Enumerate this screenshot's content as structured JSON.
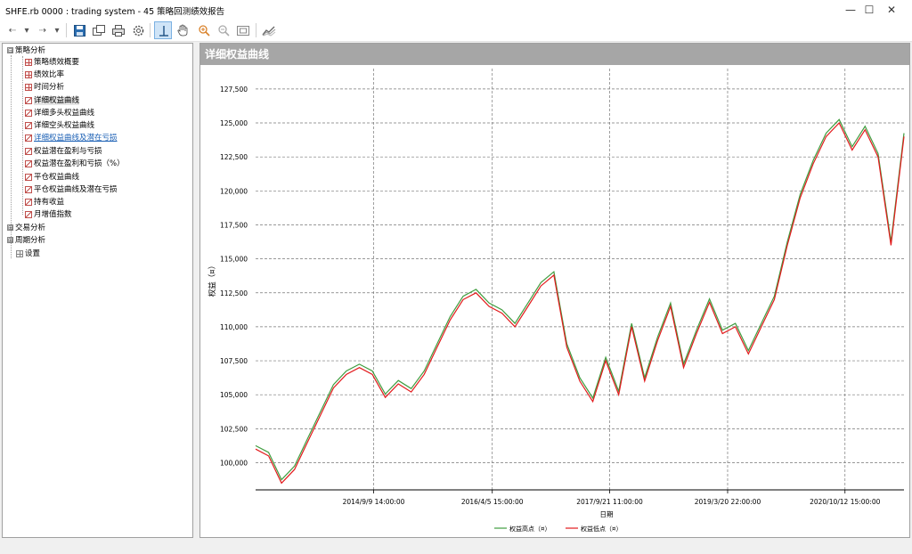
{
  "window": {
    "title": "SHFE.rb 0000 : trading system - 45 策略回测绩效报告",
    "minimize": "—",
    "maximize": "☐",
    "close": "✕"
  },
  "toolbar": {
    "back": "⇠",
    "forward": "⇢",
    "dropdown": "▾"
  },
  "tree": {
    "groups": [
      {
        "label": "策略分析",
        "expander": "⊟"
      },
      {
        "label": "交易分析",
        "expander": "⊞"
      },
      {
        "label": "周期分析",
        "expander": "⊞"
      },
      {
        "label": "设置"
      }
    ],
    "items": [
      {
        "label": "策略绩效概要"
      },
      {
        "label": "绩效比率"
      },
      {
        "label": "时间分析"
      },
      {
        "label": "详细权益曲线"
      },
      {
        "label": "详细多头权益曲线"
      },
      {
        "label": "详细空头权益曲线"
      },
      {
        "label": "详细权益曲线及潜在亏损"
      },
      {
        "label": "权益潜在盈利与亏损"
      },
      {
        "label": "权益潜在盈利和亏损（%）"
      },
      {
        "label": "平仓权益曲线"
      },
      {
        "label": "平仓权益曲线及潜在亏损"
      },
      {
        "label": "持有收益"
      },
      {
        "label": "月增值指数"
      }
    ]
  },
  "panel": {
    "header": "详细权益曲线"
  },
  "chart_data": {
    "type": "line",
    "title": "",
    "xlabel": "日期",
    "ylabel": "权益（¤）",
    "ylim": [
      98000,
      129000
    ],
    "y_ticks": [
      "100,000",
      "102,500",
      "105,000",
      "107,500",
      "110,000",
      "112,500",
      "115,000",
      "117,500",
      "120,000",
      "122,500",
      "125,000",
      "127,500"
    ],
    "x_ticks": [
      "2014/9/9 14:00:00",
      "2016/4/5 15:00:00",
      "2017/9/21 11:00:00",
      "2019/3/20 22:00:00",
      "2020/10/12 15:00:00"
    ],
    "grid": true,
    "legend_position": "bottom-center",
    "colors": {
      "high": "#3f9d3f",
      "low": "#e31a1c"
    },
    "series": [
      {
        "name": "权益高点（¤）",
        "color": "#3f9d3f"
      },
      {
        "name": "权益低点（¤）",
        "color": "#e31a1c"
      }
    ],
    "x_index": [
      0,
      2,
      4,
      6,
      8,
      10,
      12,
      14,
      16,
      18,
      20,
      22,
      24,
      26,
      28,
      30,
      32,
      34,
      36,
      38,
      40,
      42,
      44,
      46,
      48,
      50,
      52,
      54,
      56,
      58,
      60,
      62,
      64,
      66,
      68,
      70,
      72,
      74,
      76,
      78,
      80,
      82,
      84,
      86,
      88,
      90,
      92,
      94,
      96,
      98,
      100
    ],
    "equity": [
      101000,
      100500,
      98500,
      99500,
      101500,
      103500,
      105500,
      106500,
      107000,
      106500,
      104800,
      105800,
      105200,
      106500,
      108500,
      110500,
      112000,
      112500,
      111500,
      111000,
      110000,
      111500,
      113000,
      113800,
      108500,
      106000,
      104500,
      107500,
      105000,
      110000,
      106000,
      109000,
      111500,
      107000,
      109500,
      111800,
      109500,
      110000,
      108000,
      110000,
      112000,
      116000,
      119500,
      122000,
      124000,
      125000,
      123000,
      124500,
      122500,
      116000,
      124000
    ]
  }
}
